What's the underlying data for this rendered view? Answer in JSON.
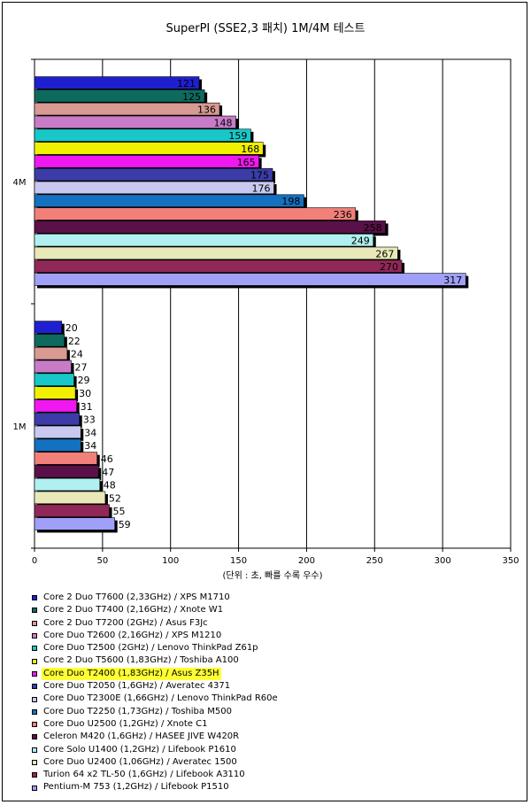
{
  "chart_data": {
    "type": "bar",
    "orientation": "horizontal",
    "title": "SuperPI (SSE2,3 패치) 1M/4M 테스트",
    "xlabel": "(단위 : 초, 빠를 수록 우수)",
    "ylabel": "",
    "xlim": [
      0,
      350
    ],
    "xticks": [
      0,
      50,
      100,
      150,
      200,
      250,
      300,
      350
    ],
    "grid": true,
    "legend_position": "bottom",
    "categories": [
      "4M",
      "1M"
    ],
    "highlighted_series": "Core Duo T2400 (1,83GHz) / Asus Z35H",
    "highlight_color": "#ffff33",
    "series": [
      {
        "name": "Core 2 Duo T7600 (2,33GHz) / XPS M1710",
        "color": "#1f1fcf",
        "values": [
          121,
          20
        ]
      },
      {
        "name": "Core 2 Duo T7400 (2,16GHz) / Xnote W1",
        "color": "#0f6a5e",
        "values": [
          125,
          22
        ]
      },
      {
        "name": "Core 2 Duo T7200 (2GHz) / Asus F3Jc",
        "color": "#d89a92",
        "values": [
          136,
          24
        ]
      },
      {
        "name": "Core Duo T2600 (2,16GHz) / XPS M1210",
        "color": "#c87cc8",
        "values": [
          148,
          27
        ]
      },
      {
        "name": "Core Duo T2500 (2GHz) / Lenovo ThinkPad Z61p",
        "color": "#18c8c8",
        "values": [
          159,
          29
        ]
      },
      {
        "name": "Core 2 Duo T5600 (1,83GHz) / Toshiba A100",
        "color": "#f0f000",
        "values": [
          168,
          30
        ]
      },
      {
        "name": "Core Duo T2400 (1,83GHz) / Asus Z35H",
        "color": "#f018f0",
        "values": [
          165,
          31
        ]
      },
      {
        "name": "Core Duo T2050 (1,6GHz) / Averatec 4371",
        "color": "#3c3ca8",
        "values": [
          175,
          33
        ]
      },
      {
        "name": "Core Duo T2300E (1,66GHz) / Lenovo ThinkPad R60e",
        "color": "#c8c8f0",
        "values": [
          176,
          34
        ]
      },
      {
        "name": "Core Duo T2250 (1,73GHz) / Toshiba M500",
        "color": "#1470c0",
        "values": [
          198,
          34
        ]
      },
      {
        "name": "Core Duo U2500 (1,2GHz) / Xnote C1",
        "color": "#f08078",
        "values": [
          236,
          46
        ]
      },
      {
        "name": "Celeron M420 (1,6GHz) / HASEE JIVE W420R",
        "color": "#5a1048",
        "values": [
          258,
          47
        ]
      },
      {
        "name": "Core Solo U1400 (1,2GHz) / Lifebook P1610",
        "color": "#b0f0f0",
        "values": [
          249,
          48
        ]
      },
      {
        "name": "Core Duo U2400 (1,06GHz) / Averatec 1500",
        "color": "#e8e8b8",
        "values": [
          267,
          52
        ]
      },
      {
        "name": "Turion 64 x2 TL-50 (1,6GHz) / Lifebook A3110",
        "color": "#902858",
        "values": [
          270,
          55
        ]
      },
      {
        "name": "Pentium-M 753 (1,2GHz) / Lifebook P1510",
        "color": "#a0a0f8",
        "values": [
          317,
          59
        ]
      }
    ]
  }
}
